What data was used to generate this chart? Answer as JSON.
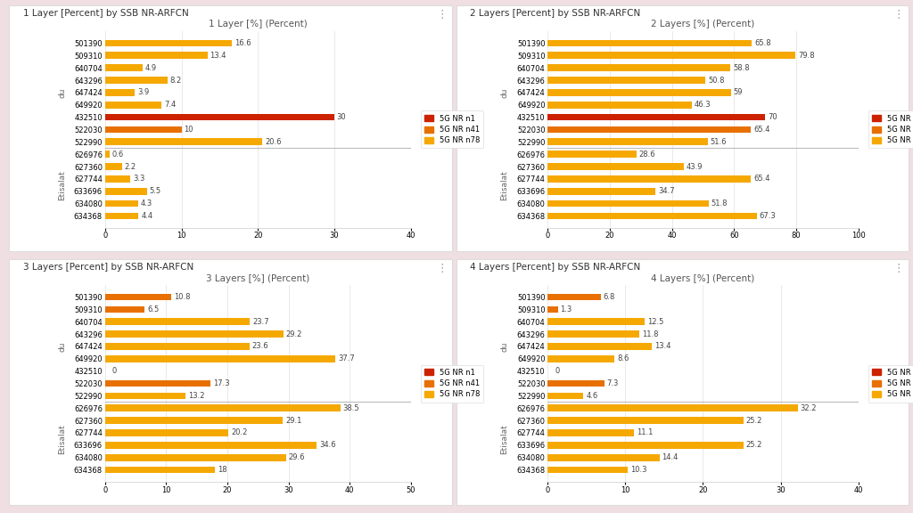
{
  "background_color": "#f0dfe2",
  "panel_bg": "#ffffff",
  "panels": [
    {
      "title_outer": "1 Layer [Percent] by SSB NR-ARFCN",
      "title_inner": "1 Layer [%] (Percent)",
      "xlim": [
        0,
        40
      ],
      "xticks": [
        0,
        10,
        20,
        30,
        40
      ],
      "categories": [
        "501390",
        "509310",
        "640704",
        "643296",
        "647424",
        "649920",
        "432510",
        "522030",
        "522990",
        "626976",
        "627360",
        "627744",
        "633696",
        "634080",
        "634368"
      ],
      "values": [
        16.6,
        13.4,
        4.9,
        8.2,
        3.9,
        7.4,
        30.0,
        10.0,
        20.6,
        0.6,
        2.2,
        3.3,
        5.5,
        4.3,
        4.4
      ],
      "n1_indices": [
        6
      ],
      "n41_indices": [
        7
      ],
      "n78_indices": [
        0,
        1,
        2,
        3,
        4,
        5,
        8,
        9,
        10,
        11,
        12,
        13,
        14
      ],
      "du_count": 9,
      "show_legend": true,
      "value_labels": [
        "16.6",
        "13.4",
        "4.9",
        "8.2",
        "3.9",
        "7.4",
        "30",
        "10",
        "20.6",
        "0.6",
        "2.2",
        "3.3",
        "5.5",
        "4.3",
        "4.4"
      ]
    },
    {
      "title_outer": "2 Layers [Percent] by SSB NR-ARFCN",
      "title_inner": "2 Layers [%] (Percent)",
      "xlim": [
        0,
        100
      ],
      "xticks": [
        0,
        20,
        40,
        60,
        80,
        100
      ],
      "categories": [
        "501390",
        "509310",
        "640704",
        "643296",
        "647424",
        "649920",
        "432510",
        "522030",
        "522990",
        "626976",
        "627360",
        "627744",
        "633696",
        "634080",
        "634368"
      ],
      "values": [
        65.8,
        79.8,
        58.8,
        50.8,
        59.0,
        46.3,
        70.0,
        65.4,
        51.6,
        28.6,
        43.9,
        65.4,
        34.7,
        51.8,
        67.3
      ],
      "n1_indices": [
        6
      ],
      "n41_indices": [
        7
      ],
      "n78_indices": [
        0,
        1,
        2,
        3,
        4,
        5,
        8,
        9,
        10,
        11,
        12,
        13,
        14
      ],
      "du_count": 9,
      "show_legend": true,
      "value_labels": [
        "65.8",
        "79.8",
        "58.8",
        "50.8",
        "59",
        "46.3",
        "70",
        "65.4",
        "51.6",
        "28.6",
        "43.9",
        "65.4",
        "34.7",
        "51.8",
        "67.3"
      ]
    },
    {
      "title_outer": "3 Layers [Percent] by SSB NR-ARFCN",
      "title_inner": "3 Layers [%] (Percent)",
      "xlim": [
        0,
        50
      ],
      "xticks": [
        0,
        10,
        20,
        30,
        40,
        50
      ],
      "categories": [
        "501390",
        "509310",
        "640704",
        "643296",
        "647424",
        "649920",
        "432510",
        "522030",
        "522990",
        "626976",
        "627360",
        "627744",
        "633696",
        "634080",
        "634368"
      ],
      "values": [
        10.8,
        6.5,
        23.7,
        29.2,
        23.6,
        37.7,
        0.0,
        17.3,
        13.2,
        38.5,
        29.1,
        20.2,
        34.6,
        29.6,
        18.0
      ],
      "n1_indices": [
        6
      ],
      "n41_indices": [
        0,
        1,
        7
      ],
      "n78_indices": [
        2,
        3,
        4,
        5,
        8,
        9,
        10,
        11,
        12,
        13,
        14
      ],
      "du_count": 9,
      "show_legend": true,
      "value_labels": [
        "10.8",
        "6.5",
        "23.7",
        "29.2",
        "23.6",
        "37.7",
        "0",
        "17.3",
        "13.2",
        "38.5",
        "29.1",
        "20.2",
        "34.6",
        "29.6",
        "18"
      ]
    },
    {
      "title_outer": "4 Layers [Percent] by SSB NR-ARFCN",
      "title_inner": "4 Layers [%] (Percent)",
      "xlim": [
        0,
        40
      ],
      "xticks": [
        0,
        10,
        20,
        30,
        40
      ],
      "categories": [
        "501390",
        "509310",
        "640704",
        "643296",
        "647424",
        "649920",
        "432510",
        "522030",
        "522990",
        "626976",
        "627360",
        "627744",
        "633696",
        "634080",
        "634368"
      ],
      "values": [
        6.8,
        1.3,
        12.5,
        11.8,
        13.4,
        8.6,
        0.0,
        7.3,
        4.6,
        32.2,
        25.2,
        11.1,
        25.2,
        14.4,
        10.3
      ],
      "n1_indices": [
        6
      ],
      "n41_indices": [
        0,
        1,
        7
      ],
      "n78_indices": [
        2,
        3,
        4,
        5,
        8,
        9,
        10,
        11,
        12,
        13,
        14
      ],
      "du_count": 9,
      "show_legend": true,
      "value_labels": [
        "6.8",
        "1.3",
        "12.5",
        "11.8",
        "13.4",
        "8.6",
        "0",
        "7.3",
        "4.6",
        "32.2",
        "25.2",
        "11.1",
        "25.2",
        "14.4",
        "10.3"
      ]
    }
  ],
  "legend_items": [
    {
      "label": "5G NR n1",
      "color": "#cc2200"
    },
    {
      "label": "5G NR n41",
      "color": "#e87000"
    },
    {
      "label": "5G NR n78",
      "color": "#f5a800"
    }
  ],
  "bar_height": 0.55,
  "label_fontsize": 6.0,
  "tick_fontsize": 6.0,
  "title_inner_fontsize": 7.5,
  "title_outer_fontsize": 7.5,
  "group_label_fontsize": 6.5
}
